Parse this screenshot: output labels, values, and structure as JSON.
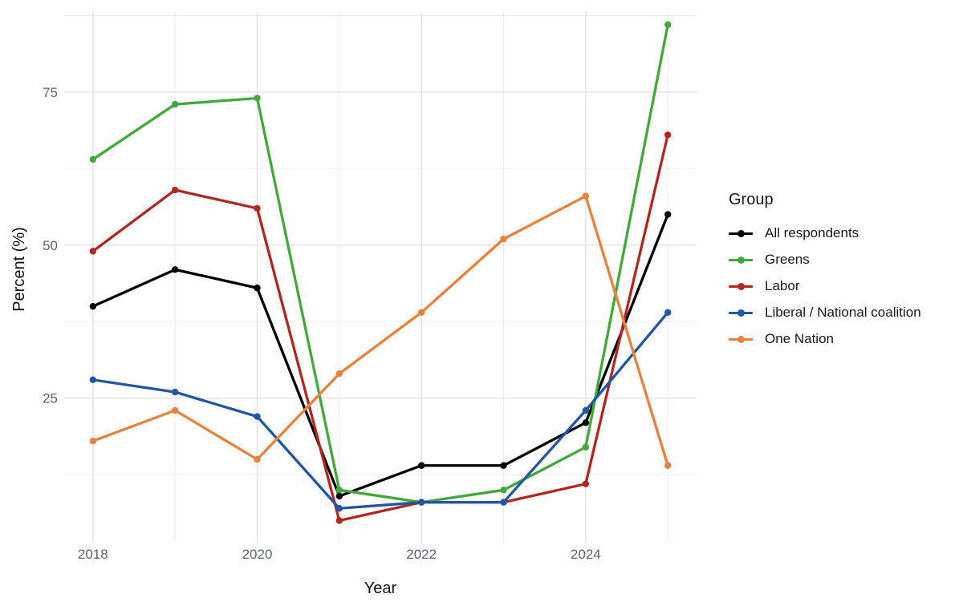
{
  "chart_data": {
    "type": "line",
    "xlabel": "Year",
    "ylabel": "Percent (%)",
    "legend_title": "Group",
    "x": [
      2018,
      2019,
      2020,
      2021,
      2022,
      2023,
      2024,
      2025
    ],
    "series": [
      {
        "name": "All respondents",
        "color": "#000000",
        "values": [
          40,
          46,
          43,
          9,
          14,
          14,
          21,
          55
        ]
      },
      {
        "name": "Greens",
        "color": "#41A83A",
        "values": [
          64,
          73,
          74,
          10,
          8,
          10,
          17,
          86
        ]
      },
      {
        "name": "Labor",
        "color": "#B0271F",
        "values": [
          49,
          59,
          56,
          5,
          8,
          8,
          11,
          68
        ]
      },
      {
        "name": "Liberal / National coalition",
        "color": "#2256A5",
        "values": [
          28,
          26,
          22,
          7,
          8,
          8,
          23,
          39
        ]
      },
      {
        "name": "One Nation",
        "color": "#E8813C",
        "values": [
          18,
          23,
          15,
          29,
          39,
          51,
          58,
          14
        ]
      }
    ],
    "x_major_ticks": [
      2018,
      2020,
      2022,
      2024
    ],
    "x_major_tick_labels": [
      "2018",
      "2020",
      "2022",
      "2024"
    ],
    "x_minor_ticks": [
      2019,
      2021,
      2023,
      2025
    ],
    "y_major_ticks": [
      25,
      50,
      75
    ],
    "y_major_tick_labels": [
      "25",
      "50",
      "75"
    ],
    "y_minor_ticks": [
      12.5,
      37.5,
      62.5,
      87.5
    ],
    "xlim": [
      2017.65,
      2025.35
    ],
    "ylim": [
      1.4,
      88.2
    ],
    "grid": true,
    "legend_position": "right",
    "colors": {
      "background": "#ffffff",
      "grid_major": "#e3e3e3",
      "grid_minor": "#ededed",
      "tick_label": "#5a6472",
      "axis_title": "#111111",
      "legend_text": "#1a1a1a"
    }
  }
}
